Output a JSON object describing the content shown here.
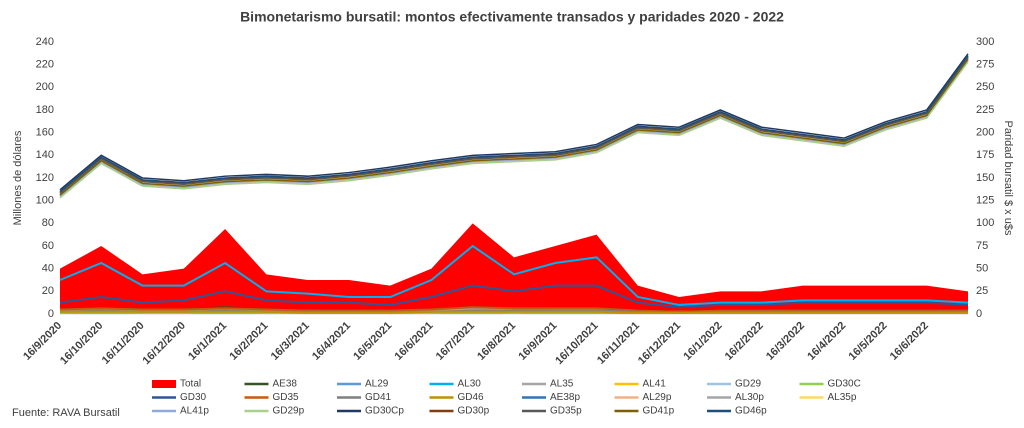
{
  "chart_data": {
    "type": "line",
    "title": "Bimonetarismo bursatil: montos efectivamente transados y paridades 2020 - 2022",
    "y_label": "Millones de dólares",
    "y2_label": "Paridad bursatil $ x u$s",
    "source": "Fuente: RAVA Bursatil",
    "categories": [
      "16/9/2020",
      "16/10/2020",
      "16/11/2020",
      "16/12/2020",
      "16/1/2021",
      "16/2/2021",
      "16/3/2021",
      "16/4/2021",
      "16/5/2021",
      "16/6/2021",
      "16/7/2021",
      "16/8/2021",
      "16/9/2021",
      "16/10/2021",
      "16/11/2021",
      "16/12/2021",
      "16/1/2022",
      "16/2/2022",
      "16/3/2022",
      "16/4/2022",
      "16/5/2022",
      "16/6/2022",
      null
    ],
    "ylim": [
      0,
      240
    ],
    "yticks": [
      0,
      20,
      40,
      60,
      80,
      100,
      120,
      140,
      160,
      180,
      200,
      220,
      240
    ],
    "y2lim": [
      0,
      300
    ],
    "y2ticks": [
      0,
      25,
      50,
      75,
      100,
      125,
      150,
      175,
      200,
      225,
      250,
      275,
      300
    ],
    "series": [
      {
        "name": "Total",
        "type": "area",
        "color": "#ff0000",
        "values": [
          40,
          60,
          35,
          40,
          75,
          35,
          30,
          30,
          25,
          40,
          80,
          50,
          60,
          70,
          25,
          15,
          20,
          20,
          25,
          25,
          25,
          25,
          20
        ]
      },
      {
        "name": "AE38",
        "color": "#375623",
        "values": [
          4,
          5,
          4,
          4,
          6,
          4,
          3,
          3,
          3,
          4,
          6,
          5,
          5,
          5,
          3,
          2,
          3,
          3,
          3,
          3,
          3,
          3,
          3
        ]
      },
      {
        "name": "AL29",
        "color": "#5b9bd5",
        "values": [
          3,
          4,
          3,
          3,
          5,
          3,
          3,
          2,
          2,
          3,
          5,
          4,
          4,
          4,
          2,
          2,
          2,
          2,
          2,
          2,
          2,
          2,
          2
        ]
      },
      {
        "name": "AL30",
        "color": "#00b0f0",
        "values": [
          30,
          45,
          25,
          25,
          45,
          20,
          18,
          15,
          15,
          30,
          60,
          35,
          45,
          50,
          15,
          8,
          10,
          10,
          12,
          12,
          12,
          12,
          10
        ]
      },
      {
        "name": "AL35",
        "color": "#a5a5a5",
        "values": [
          3,
          4,
          3,
          3,
          4,
          3,
          2,
          2,
          2,
          3,
          5,
          4,
          4,
          4,
          2,
          2,
          2,
          2,
          2,
          2,
          2,
          2,
          2
        ]
      },
      {
        "name": "AL41",
        "color": "#ffc000",
        "values": [
          2,
          3,
          2,
          2,
          3,
          2,
          2,
          1,
          1,
          2,
          3,
          2,
          3,
          3,
          1,
          1,
          1,
          1,
          1,
          1,
          1,
          1,
          1
        ]
      },
      {
        "name": "GD29",
        "color": "#9dc3e6",
        "values": [
          1,
          2,
          1,
          1,
          2,
          1,
          1,
          1,
          1,
          1,
          2,
          1,
          2,
          2,
          1,
          1,
          1,
          1,
          1,
          1,
          1,
          1,
          1
        ]
      },
      {
        "name": "GD30C",
        "color": "#92d050",
        "values": [
          1,
          1,
          1,
          1,
          1,
          1,
          1,
          1,
          1,
          1,
          1,
          1,
          1,
          1,
          1,
          1,
          1,
          1,
          1,
          1,
          1,
          1,
          1
        ]
      },
      {
        "name": "GD30",
        "color": "#2f5597",
        "values": [
          10,
          15,
          10,
          12,
          20,
          12,
          10,
          10,
          8,
          15,
          25,
          20,
          25,
          25,
          10,
          6,
          8,
          8,
          10,
          10,
          10,
          10,
          8
        ]
      },
      {
        "name": "GD35",
        "color": "#c55a11",
        "values": [
          4,
          5,
          4,
          4,
          5,
          4,
          3,
          3,
          3,
          4,
          6,
          5,
          5,
          5,
          3,
          2,
          3,
          3,
          3,
          3,
          3,
          3,
          3
        ]
      },
      {
        "name": "GD41",
        "color": "#7f7f7f",
        "values": [
          2,
          3,
          2,
          2,
          3,
          2,
          2,
          2,
          2,
          2,
          3,
          3,
          3,
          3,
          2,
          1,
          2,
          2,
          2,
          2,
          2,
          2,
          2
        ]
      },
      {
        "name": "GD46",
        "color": "#bf9000",
        "values": [
          2,
          2,
          2,
          2,
          2,
          2,
          1,
          1,
          1,
          2,
          2,
          2,
          2,
          2,
          1,
          1,
          1,
          1,
          1,
          1,
          1,
          1,
          1
        ]
      },
      {
        "name": "AE38p",
        "axis": "y2",
        "color": "#2e75b6",
        "values": [
          133,
          171,
          146,
          143,
          148,
          150,
          148,
          152,
          158,
          165,
          171,
          173,
          175,
          183,
          205,
          202,
          221,
          202,
          196,
          190,
          208,
          221,
          283
        ]
      },
      {
        "name": "AL29p",
        "axis": "y2",
        "color": "#f4b183",
        "values": [
          129,
          167,
          142,
          139,
          144,
          146,
          144,
          148,
          154,
          161,
          167,
          169,
          171,
          179,
          201,
          198,
          217,
          198,
          192,
          186,
          204,
          217,
          279
        ]
      },
      {
        "name": "AL30p",
        "axis": "y2",
        "color": "#a5a5a5",
        "values": [
          131,
          169,
          144,
          141,
          146,
          148,
          146,
          150,
          156,
          163,
          169,
          171,
          173,
          181,
          203,
          200,
          219,
          200,
          194,
          188,
          206,
          219,
          281
        ]
      },
      {
        "name": "AL35p",
        "axis": "y2",
        "color": "#ffd966",
        "values": [
          132,
          170,
          145,
          142,
          147,
          149,
          147,
          151,
          157,
          164,
          170,
          172,
          174,
          182,
          204,
          201,
          220,
          201,
          195,
          189,
          207,
          220,
          282
        ]
      },
      {
        "name": "AL41p",
        "axis": "y2",
        "color": "#8faadc",
        "values": [
          130,
          168,
          143,
          140,
          145,
          147,
          145,
          149,
          155,
          162,
          168,
          170,
          172,
          180,
          202,
          199,
          218,
          199,
          193,
          187,
          205,
          218,
          280
        ]
      },
      {
        "name": "GD29p",
        "axis": "y2",
        "color": "#a9d18e",
        "values": [
          128,
          166,
          141,
          138,
          143,
          145,
          143,
          147,
          153,
          160,
          166,
          168,
          170,
          178,
          200,
          197,
          216,
          197,
          191,
          185,
          203,
          216,
          278
        ]
      },
      {
        "name": "GD30Cp",
        "axis": "y2",
        "color": "#203864",
        "values": [
          137,
          175,
          150,
          147,
          152,
          154,
          152,
          156,
          162,
          169,
          175,
          177,
          179,
          187,
          209,
          206,
          225,
          206,
          200,
          194,
          212,
          225,
          287
        ]
      },
      {
        "name": "GD30p",
        "axis": "y2",
        "color": "#843c0c",
        "values": [
          134,
          172,
          147,
          144,
          149,
          151,
          149,
          153,
          159,
          166,
          172,
          174,
          176,
          184,
          206,
          203,
          222,
          203,
          197,
          191,
          209,
          222,
          284
        ]
      },
      {
        "name": "GD35p",
        "axis": "y2",
        "color": "#595959",
        "values": [
          133,
          171,
          146,
          143,
          148,
          150,
          148,
          152,
          158,
          165,
          171,
          173,
          175,
          183,
          205,
          202,
          221,
          202,
          196,
          190,
          208,
          221,
          283
        ]
      },
      {
        "name": "GD41p",
        "axis": "y2",
        "color": "#7f6000",
        "values": [
          131,
          169,
          144,
          141,
          146,
          148,
          146,
          150,
          156,
          163,
          169,
          171,
          173,
          181,
          203,
          200,
          219,
          200,
          194,
          188,
          206,
          219,
          281
        ]
      },
      {
        "name": "GD46p",
        "axis": "y2",
        "color": "#1f4e79",
        "values": [
          135,
          173,
          148,
          145,
          150,
          152,
          150,
          154,
          160,
          167,
          173,
          175,
          177,
          185,
          207,
          204,
          223,
          204,
          198,
          192,
          210,
          223,
          285
        ]
      }
    ]
  }
}
